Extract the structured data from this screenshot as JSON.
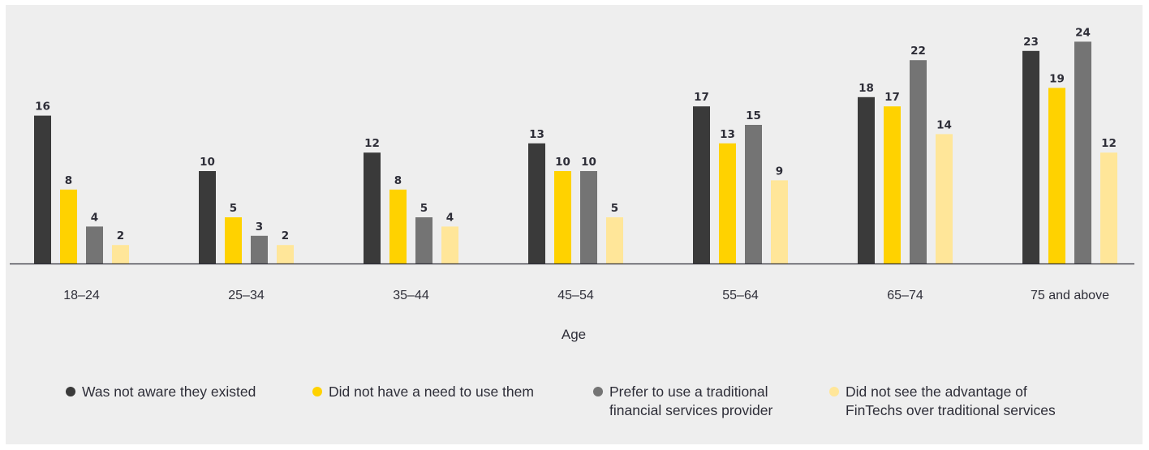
{
  "chart_data": {
    "type": "bar",
    "title": "",
    "xlabel": "Age",
    "ylabel": "",
    "categories": [
      "18–24",
      "25–34",
      "35–44",
      "45–54",
      "55–64",
      "65–74",
      "75 and above"
    ],
    "series": [
      {
        "name": "Was not aware they existed",
        "color": "#3a3a3a",
        "values": [
          16,
          10,
          12,
          13,
          17,
          18,
          23
        ]
      },
      {
        "name": "Did not have a need to use them",
        "color": "#ffd200",
        "values": [
          8,
          5,
          8,
          10,
          13,
          17,
          19
        ]
      },
      {
        "name": "Prefer to use a traditional financial services provider",
        "legend_lines": [
          "Prefer to use a traditional",
          "financial services provider"
        ],
        "color": "#747474",
        "values": [
          4,
          3,
          5,
          10,
          15,
          22,
          24
        ]
      },
      {
        "name": "Did not see the advantage of FinTechs over traditional services",
        "legend_lines": [
          "Did not see the advantage of",
          "FinTechs over traditional services"
        ],
        "color": "#ffe699",
        "values": [
          2,
          2,
          4,
          5,
          9,
          14,
          12
        ]
      }
    ],
    "ylim": [
      0,
      25
    ],
    "grid": false,
    "legend_position": "bottom"
  }
}
